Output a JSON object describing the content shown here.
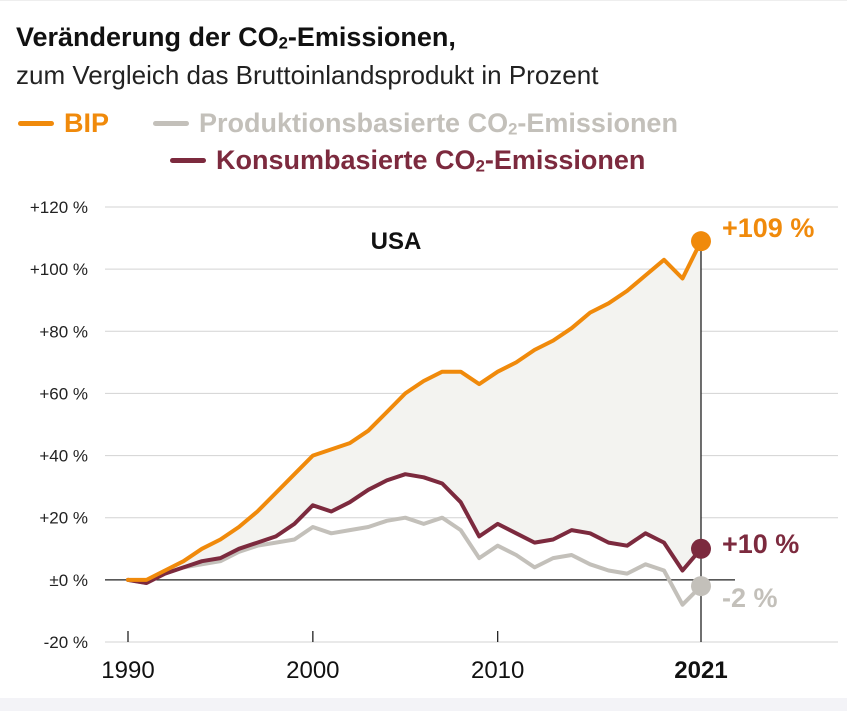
{
  "title_pre": "Veränderung der CO",
  "title_sub": "2",
  "title_post": "-Emissionen,",
  "subtitle": "zum Vergleich das Bruttoinlandsprodukt in Prozent",
  "legend": {
    "bip": "BIP",
    "prod_pre": "Produktionsbasierte CO",
    "prod_sub": "2",
    "prod_post": "-Emissionen",
    "kons_pre": "Konsumbasierte CO",
    "kons_sub": "2",
    "kons_post": "-Emissionen"
  },
  "colors": {
    "bip": "#F08A0B",
    "production": "#C3C0BA",
    "consumption": "#7C2A3E",
    "fill": "#F3F3F0",
    "grid": "#D3D3D3",
    "axis": "#222222"
  },
  "chart_data": {
    "type": "line",
    "title": "Veränderung der CO2-Emissionen, zum Vergleich das Bruttoinlandsprodukt in Prozent",
    "region_label": "USA",
    "x": [
      1990,
      1991,
      1992,
      1993,
      1994,
      1995,
      1996,
      1997,
      1998,
      1999,
      2000,
      2001,
      2002,
      2003,
      2004,
      2005,
      2006,
      2007,
      2008,
      2009,
      2010,
      2011,
      2012,
      2013,
      2014,
      2015,
      2016,
      2017,
      2018,
      2019,
      2020,
      2021
    ],
    "ylim": [
      -20,
      120
    ],
    "yticks": [
      -20,
      0,
      20,
      40,
      60,
      80,
      100,
      120
    ],
    "ytick_labels": [
      "-20 %",
      "±0 %",
      "+20 %",
      "+40 %",
      "+60 %",
      "+80 %",
      "+100 %",
      "+120 %"
    ],
    "xticks": [
      1990,
      2000,
      2010,
      2021
    ],
    "xtick_labels": [
      "1990",
      "2000",
      "2010",
      "2021"
    ],
    "series": [
      {
        "key": "production",
        "name": "Produktionsbasierte CO2-Emissionen",
        "values": [
          0,
          -1,
          2,
          4,
          5,
          6,
          9,
          11,
          12,
          13,
          17,
          15,
          16,
          17,
          19,
          20,
          18,
          20,
          16,
          7,
          11,
          8,
          4,
          7,
          8,
          5,
          3,
          2,
          5,
          3,
          -8,
          -2
        ],
        "end_label": "-2 %"
      },
      {
        "key": "consumption",
        "name": "Konsumbasierte CO2-Emissionen",
        "values": [
          0,
          -1,
          2,
          4,
          6,
          7,
          10,
          12,
          14,
          18,
          24,
          22,
          25,
          29,
          32,
          34,
          33,
          31,
          25,
          14,
          18,
          15,
          12,
          13,
          16,
          15,
          12,
          11,
          15,
          12,
          3,
          10
        ],
        "end_label": "+10 %"
      },
      {
        "key": "bip",
        "name": "BIP",
        "values": [
          0,
          0,
          3,
          6,
          10,
          13,
          17,
          22,
          28,
          34,
          40,
          42,
          44,
          48,
          54,
          60,
          64,
          67,
          67,
          63,
          67,
          70,
          74,
          77,
          81,
          86,
          89,
          93,
          98,
          103,
          97,
          109
        ],
        "end_label": "+109 %"
      }
    ]
  }
}
